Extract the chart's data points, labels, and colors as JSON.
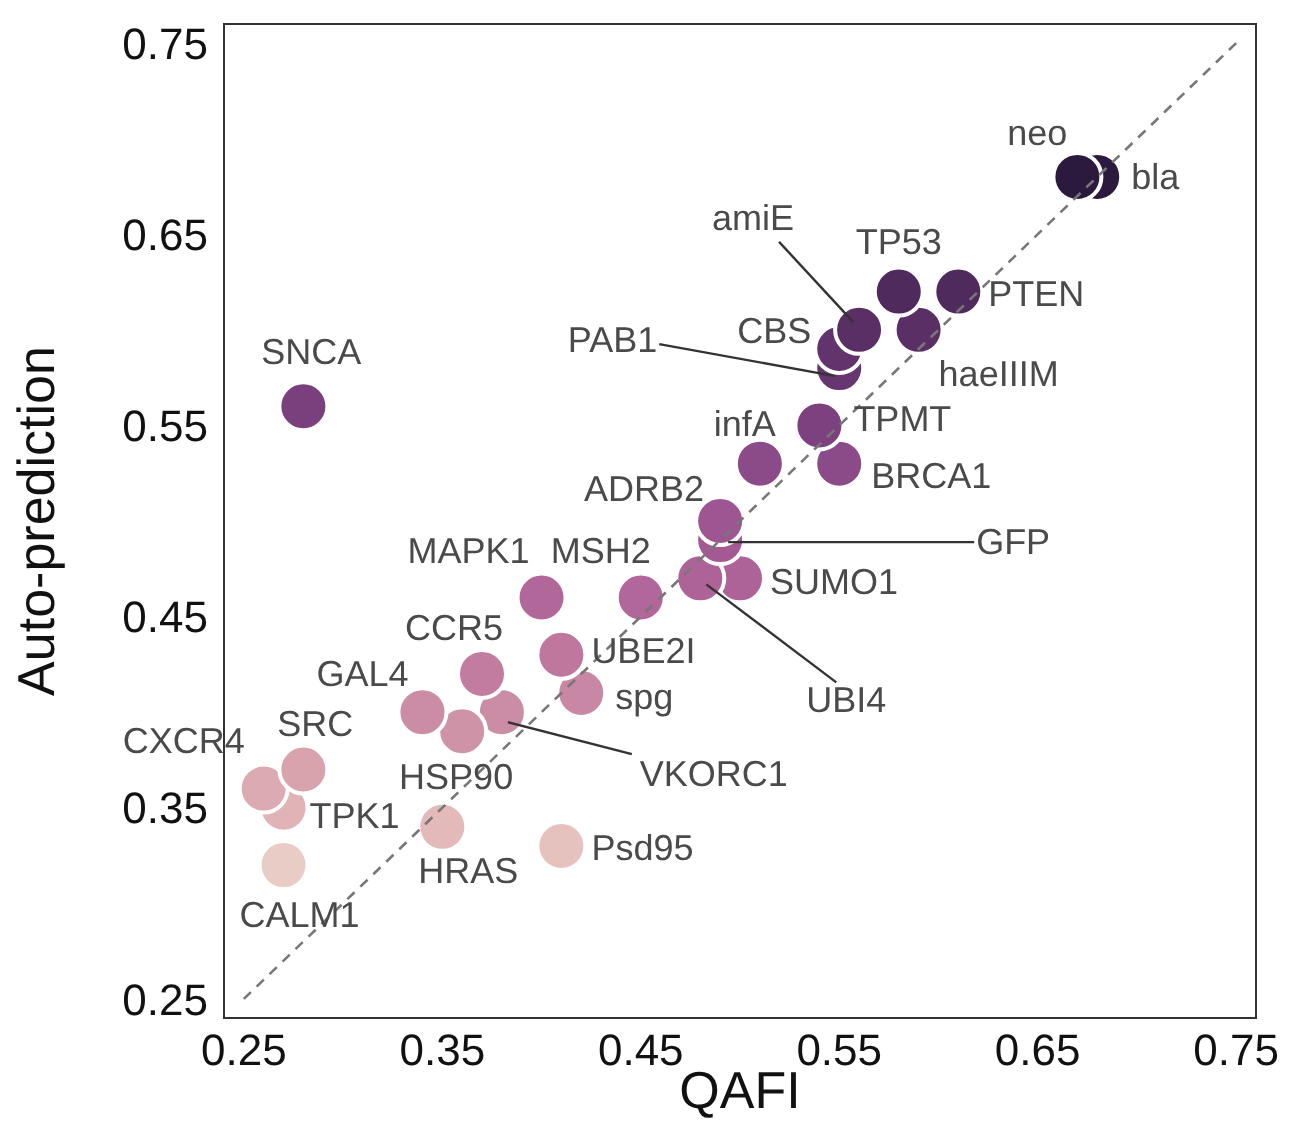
{
  "chart_data": {
    "type": "scatter",
    "xlabel": "QAFI",
    "ylabel": "Auto-prediction",
    "xlim": [
      0.24,
      0.76
    ],
    "ylim": [
      0.24,
      0.76
    ],
    "xticks": [
      0.25,
      0.35,
      0.45,
      0.55,
      0.65,
      0.75
    ],
    "yticks": [
      0.25,
      0.35,
      0.45,
      0.55,
      0.65,
      0.75
    ],
    "series": [
      {
        "type": "scatter",
        "marker": "circle",
        "x": [
          0.67,
          0.68,
          0.58,
          0.61,
          0.56,
          0.59,
          0.55,
          0.55,
          0.28,
          0.54,
          0.51,
          0.55,
          0.49,
          0.49,
          0.4,
          0.45,
          0.48,
          0.5,
          0.37,
          0.41,
          0.42,
          0.34,
          0.36,
          0.38,
          0.28,
          0.26,
          0.27,
          0.35,
          0.41,
          0.27
        ],
        "values": [
          0.68,
          0.68,
          0.62,
          0.62,
          0.6,
          0.6,
          0.59,
          0.58,
          0.56,
          0.55,
          0.53,
          0.53,
          0.5,
          0.49,
          0.46,
          0.46,
          0.47,
          0.47,
          0.42,
          0.43,
          0.41,
          0.4,
          0.39,
          0.4,
          0.37,
          0.36,
          0.35,
          0.34,
          0.33,
          0.32
        ],
        "colors": [
          "#2b1a3e",
          "#2b1a3e",
          "#4e2a5d",
          "#4e2a5d",
          "#5a2f66",
          "#5a2f66",
          "#62336c",
          "#673570",
          "#7a3f7d",
          "#7d417f",
          "#8b4a88",
          "#8b4a88",
          "#9d5691",
          "#a35a93",
          "#b2679a",
          "#b2679a",
          "#ad6398",
          "#ad6398",
          "#c27c9f",
          "#bf779e",
          "#c887a4",
          "#cb8ca6",
          "#cf93a8",
          "#cb8ca6",
          "#d9a3ae",
          "#dcaab1",
          "#e0b3b6",
          "#e3b9b9",
          "#e6c2bf",
          "#e9ccc6"
        ]
      },
      {
        "type": "line",
        "x": [
          0.25,
          0.75
        ],
        "values": [
          0.25,
          0.75
        ],
        "color": "#777777",
        "line_style": "dashed"
      }
    ],
    "annotations": [
      {
        "text": "neo",
        "x": 0.67,
        "y": 0.68
      },
      {
        "text": "bla",
        "x": 0.68,
        "y": 0.68
      },
      {
        "text": "TP53",
        "x": 0.58,
        "y": 0.62
      },
      {
        "text": "PTEN",
        "x": 0.61,
        "y": 0.62
      },
      {
        "text": "amiE",
        "x": 0.56,
        "y": 0.6
      },
      {
        "text": "haeIIIM",
        "x": 0.59,
        "y": 0.6
      },
      {
        "text": "CBS",
        "x": 0.55,
        "y": 0.59
      },
      {
        "text": "PAB1",
        "x": 0.55,
        "y": 0.58
      },
      {
        "text": "SNCA",
        "x": 0.28,
        "y": 0.56
      },
      {
        "text": "TPMT",
        "x": 0.54,
        "y": 0.55
      },
      {
        "text": "infA",
        "x": 0.51,
        "y": 0.53
      },
      {
        "text": "BRCA1",
        "x": 0.55,
        "y": 0.53
      },
      {
        "text": "ADRB2",
        "x": 0.49,
        "y": 0.5
      },
      {
        "text": "GFP",
        "x": 0.49,
        "y": 0.49
      },
      {
        "text": "MAPK1",
        "x": 0.4,
        "y": 0.46
      },
      {
        "text": "MSH2",
        "x": 0.45,
        "y": 0.46
      },
      {
        "text": "UBI4",
        "x": 0.48,
        "y": 0.47
      },
      {
        "text": "SUMO1",
        "x": 0.5,
        "y": 0.47
      },
      {
        "text": "CCR5",
        "x": 0.37,
        "y": 0.42
      },
      {
        "text": "UBE2I",
        "x": 0.41,
        "y": 0.43
      },
      {
        "text": "spg",
        "x": 0.42,
        "y": 0.41
      },
      {
        "text": "GAL4",
        "x": 0.34,
        "y": 0.4
      },
      {
        "text": "HSP90",
        "x": 0.36,
        "y": 0.39
      },
      {
        "text": "VKORC1",
        "x": 0.38,
        "y": 0.4
      },
      {
        "text": "SRC",
        "x": 0.28,
        "y": 0.37
      },
      {
        "text": "CXCR4",
        "x": 0.26,
        "y": 0.36
      },
      {
        "text": "TPK1",
        "x": 0.27,
        "y": 0.35
      },
      {
        "text": "HRAS",
        "x": 0.35,
        "y": 0.34
      },
      {
        "text": "Psd95",
        "x": 0.41,
        "y": 0.33
      },
      {
        "text": "CALM1",
        "x": 0.27,
        "y": 0.32
      }
    ]
  }
}
